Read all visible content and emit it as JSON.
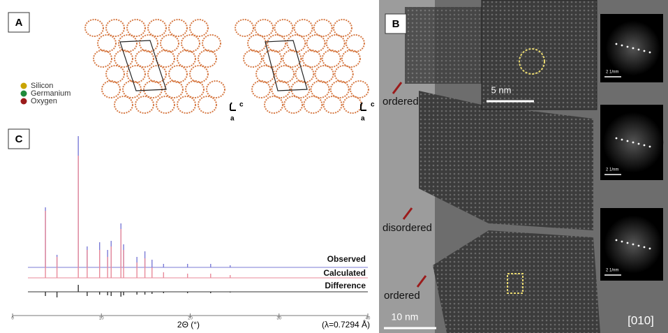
{
  "panel_a": {
    "label": "A",
    "legend": [
      {
        "name": "Silicon",
        "color": "#c9a400"
      },
      {
        "name": "Germanium",
        "color": "#1f8a3a"
      },
      {
        "name": "Oxygen",
        "color": "#9b1b1b"
      }
    ],
    "orientation_1": {
      "c": "c",
      "a": "a"
    },
    "orientation_2": {
      "c": "c",
      "a": "a"
    }
  },
  "panel_b": {
    "label": "B",
    "annotations": [
      "ordered",
      "disordered",
      "ordered"
    ],
    "inset_scale_bar": "5 nm",
    "scale_bar": "10 nm",
    "zone_axis": "[010]",
    "fft_scale_labels": [
      "2 1/nm",
      "2 1/nm",
      "2 1/nm"
    ]
  },
  "panel_c": {
    "label": "C",
    "xlabel": "2Θ (°)",
    "wavelength": "(λ=0.7294 Å)",
    "xlim": [
      0,
      40
    ],
    "xticks": [
      0,
      10,
      20,
      30,
      40
    ],
    "series": [
      {
        "name": "Observed",
        "color": "#7b7bd6",
        "x": [
          3.7,
          5.0,
          7.4,
          8.4,
          9.8,
          10.7,
          11.1,
          12.2,
          12.5,
          14.0,
          14.9,
          15.7,
          17.0,
          19.7,
          22.3,
          24.5
        ],
        "values": [
          86,
          18,
          188,
          30,
          36,
          25,
          38,
          63,
          33,
          15,
          23,
          11,
          5,
          5,
          5,
          3
        ]
      },
      {
        "name": "Calculated",
        "color": "#e88a9a",
        "x": [
          3.7,
          5.0,
          7.4,
          8.4,
          9.8,
          10.7,
          11.1,
          12.2,
          12.5,
          14.0,
          14.9,
          15.7,
          17.0,
          19.7,
          22.3,
          24.5
        ],
        "values": [
          96,
          30,
          175,
          40,
          40,
          30,
          45,
          70,
          40,
          22,
          28,
          15,
          8,
          6,
          6,
          4
        ]
      },
      {
        "name": "Difference",
        "color": "#333333",
        "x": [
          3.7,
          5.0,
          7.4,
          8.4,
          9.8,
          10.7,
          11.1,
          12.2,
          12.5,
          14.0,
          14.9,
          15.7,
          17.0,
          19.7,
          22.3,
          24.5
        ],
        "values": [
          -6,
          -8,
          10,
          -6,
          -4,
          -5,
          -6,
          -7,
          -5,
          -4,
          -4,
          -3,
          -2,
          -2,
          -2,
          -1
        ]
      }
    ]
  }
}
